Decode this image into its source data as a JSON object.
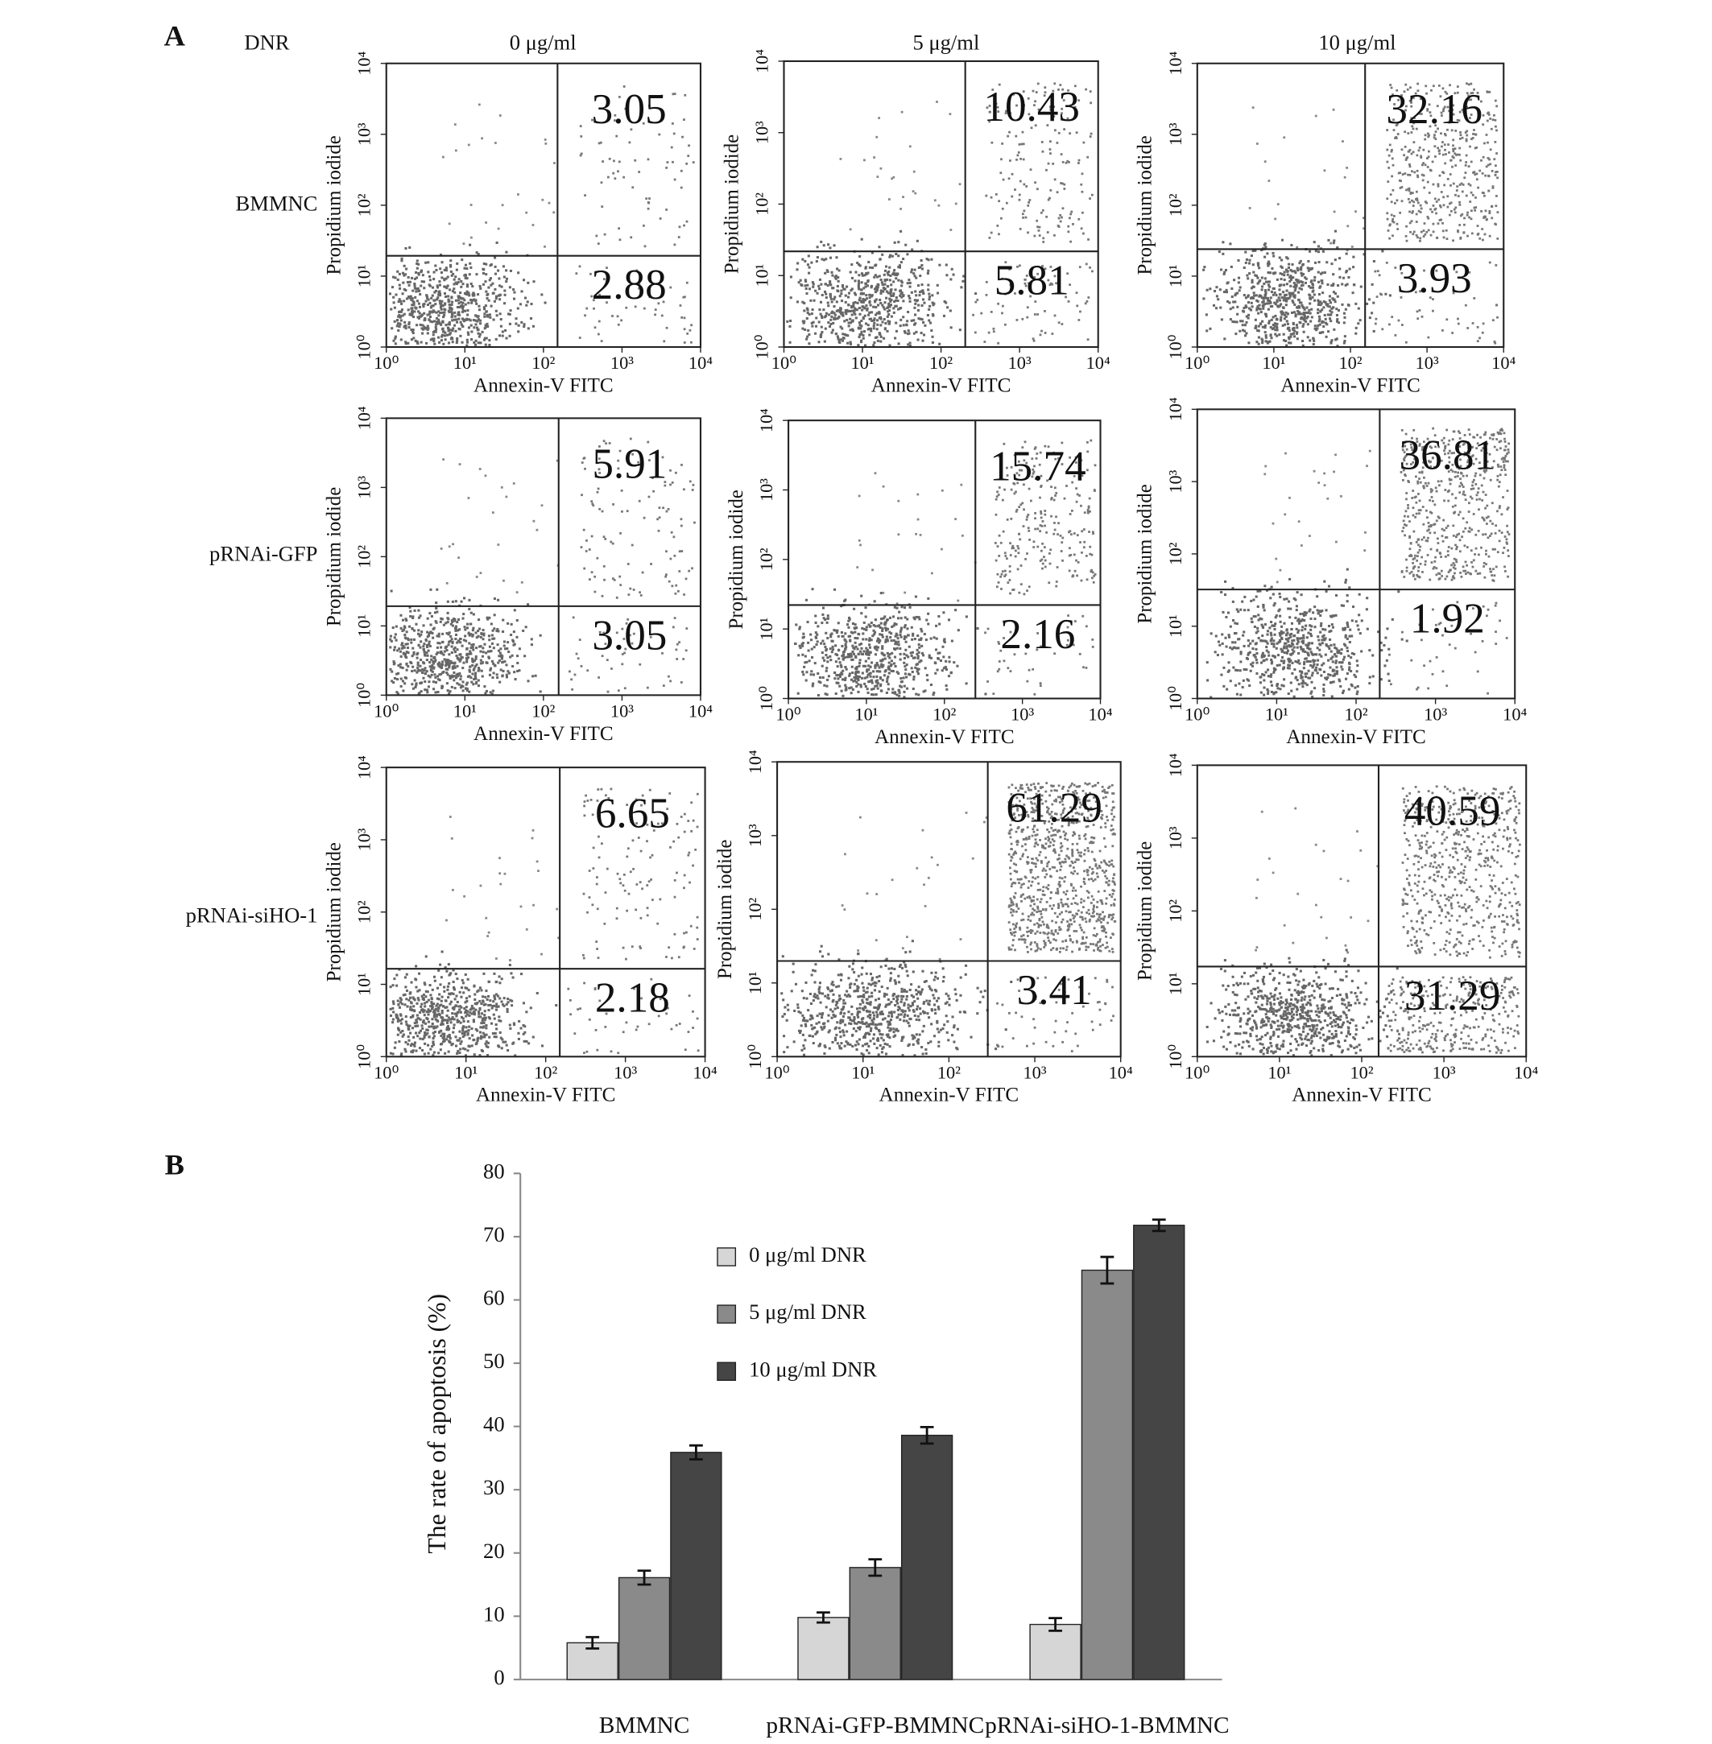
{
  "panel_labels": [
    "A",
    "B"
  ],
  "flow": {
    "treatment": "DNR",
    "doses": [
      "0 μg/ml",
      "5 μg/ml",
      "10 μg/ml"
    ],
    "groups": [
      "BMMNC",
      "pRNAi-GFP",
      "pRNAi-siHO-1"
    ],
    "x_label": "Annexin-V FITC",
    "y_label": "Propidium iodide",
    "lim": [
      1,
      10000
    ],
    "log_ticks": [
      {
        "value": 1,
        "label": "10⁰"
      },
      {
        "value": 10,
        "label": "10¹"
      },
      {
        "value": 100,
        "label": "10²"
      },
      {
        "value": 1000,
        "label": "10³"
      },
      {
        "value": 10000,
        "label": "10⁴"
      }
    ],
    "plots": [
      [
        {
          "upper_right": 3.05,
          "lower_right": 2.88
        },
        {
          "upper_right": 10.43,
          "lower_right": 5.81
        },
        {
          "upper_right": 32.16,
          "lower_right": 3.93
        }
      ],
      [
        {
          "upper_right": 5.91,
          "lower_right": 3.05
        },
        {
          "upper_right": 15.74,
          "lower_right": 2.16
        },
        {
          "upper_right": 36.81,
          "lower_right": 1.92
        }
      ],
      [
        {
          "upper_right": 6.65,
          "lower_right": 2.18
        },
        {
          "upper_right": 61.29,
          "lower_right": 3.41
        },
        {
          "upper_right": 40.59,
          "lower_right": 31.29
        }
      ]
    ]
  },
  "chart_data": {
    "type": "bar",
    "y_label": "The rate of apoptosis (%)",
    "categories": [
      "BMMNC",
      "pRNAi-GFP-BMMNC",
      "pRNAi-siHO-1-BMMNC"
    ],
    "series": [
      {
        "name": "0 μg/ml DNR",
        "color": "#d6d6d6",
        "values": [
          5.8,
          9.8,
          8.7
        ],
        "errors": [
          0.9,
          0.8,
          1.0
        ]
      },
      {
        "name": "5 μg/ml DNR",
        "color": "#8a8a8a",
        "values": [
          16.1,
          17.7,
          64.7
        ],
        "errors": [
          1.1,
          1.3,
          2.1
        ]
      },
      {
        "name": "10 μg/ml DNR",
        "color": "#454545",
        "values": [
          35.9,
          38.6,
          71.8
        ],
        "errors": [
          1.1,
          1.3,
          0.9
        ]
      }
    ],
    "ylim": [
      0,
      80
    ],
    "yticks": [
      0,
      10,
      20,
      30,
      40,
      50,
      60,
      70,
      80
    ],
    "legend": "upper-left"
  }
}
